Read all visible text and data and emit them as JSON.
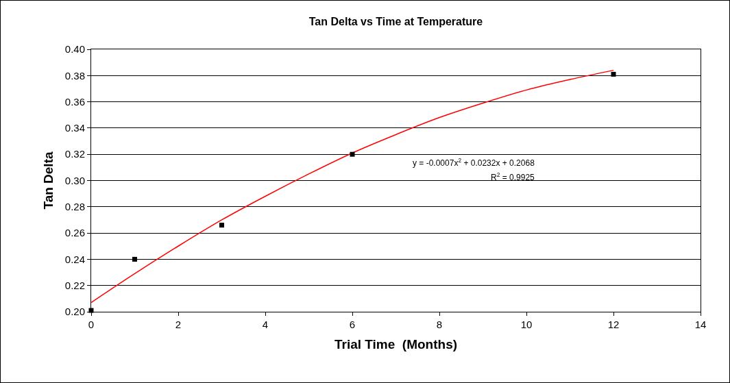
{
  "chart_data": {
    "type": "scatter",
    "title": "Tan Delta vs Time at Temperature",
    "xlabel": "Trial Time  (Months)",
    "ylabel": "Tan Delta",
    "series": [
      {
        "type": "scatter",
        "color": "#000000",
        "marker": "square",
        "x": [
          0,
          1,
          3,
          6,
          12
        ],
        "values": [
          0.201,
          0.24,
          0.266,
          0.32,
          0.381
        ]
      },
      {
        "type": "line",
        "color": "#ff0000",
        "marker": "none",
        "x": [
          0,
          1,
          2,
          3,
          4,
          5,
          6,
          7,
          8,
          9,
          10,
          11,
          12
        ],
        "values": [
          0.207,
          0.229,
          0.25,
          0.27,
          0.288,
          0.305,
          0.321,
          0.335,
          0.348,
          0.359,
          0.369,
          0.377,
          0.384
        ]
      }
    ],
    "annotations": [
      "y = -0.0007x$^{2}$ + 0.0232x + 0.2068",
      "R$^{2}$ = 0.9925"
    ],
    "xlim": [
      0,
      14
    ],
    "xticks": [
      0,
      2,
      4,
      6,
      8,
      10,
      12,
      14
    ],
    "ylim": [
      0.2,
      0.4
    ],
    "yticks": [
      {
        "value": 0.2,
        "label": "0.20"
      },
      {
        "value": 0.22,
        "label": "0.22"
      },
      {
        "value": 0.24,
        "label": "0.24"
      },
      {
        "value": 0.26,
        "label": "0.26"
      },
      {
        "value": 0.28,
        "label": "0.28"
      },
      {
        "value": 0.3,
        "label": "0.30"
      },
      {
        "value": 0.32,
        "label": "0.32"
      },
      {
        "value": 0.34,
        "label": "0.34"
      },
      {
        "value": 0.36,
        "label": "0.36"
      },
      {
        "value": 0.38,
        "label": "0.38"
      },
      {
        "value": 0.4,
        "label": "0.40"
      }
    ],
    "grid": "y"
  }
}
